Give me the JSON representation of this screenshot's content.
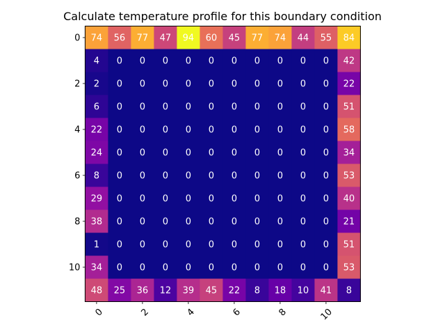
{
  "chart_data": {
    "type": "heatmap",
    "title": "Calculate temperature profile for this boundary condition",
    "colormap": "plasma",
    "value_range": [
      0,
      94
    ],
    "x_ticks": [
      "0",
      "2",
      "4",
      "6",
      "8",
      "10"
    ],
    "y_ticks": [
      "0",
      "2",
      "4",
      "6",
      "8",
      "10"
    ],
    "x_tick_rotation": "45",
    "values": [
      [
        74,
        56,
        77,
        47,
        94,
        60,
        45,
        77,
        74,
        44,
        55,
        84
      ],
      [
        4,
        0,
        0,
        0,
        0,
        0,
        0,
        0,
        0,
        0,
        0,
        42
      ],
      [
        2,
        0,
        0,
        0,
        0,
        0,
        0,
        0,
        0,
        0,
        0,
        22
      ],
      [
        6,
        0,
        0,
        0,
        0,
        0,
        0,
        0,
        0,
        0,
        0,
        51
      ],
      [
        22,
        0,
        0,
        0,
        0,
        0,
        0,
        0,
        0,
        0,
        0,
        58
      ],
      [
        24,
        0,
        0,
        0,
        0,
        0,
        0,
        0,
        0,
        0,
        0,
        34
      ],
      [
        8,
        0,
        0,
        0,
        0,
        0,
        0,
        0,
        0,
        0,
        0,
        53
      ],
      [
        29,
        0,
        0,
        0,
        0,
        0,
        0,
        0,
        0,
        0,
        0,
        40
      ],
      [
        38,
        0,
        0,
        0,
        0,
        0,
        0,
        0,
        0,
        0,
        0,
        21
      ],
      [
        1,
        0,
        0,
        0,
        0,
        0,
        0,
        0,
        0,
        0,
        0,
        51
      ],
      [
        34,
        0,
        0,
        0,
        0,
        0,
        0,
        0,
        0,
        0,
        0,
        53
      ],
      [
        48,
        25,
        36,
        12,
        39,
        45,
        22,
        8,
        18,
        10,
        41,
        8
      ]
    ]
  }
}
